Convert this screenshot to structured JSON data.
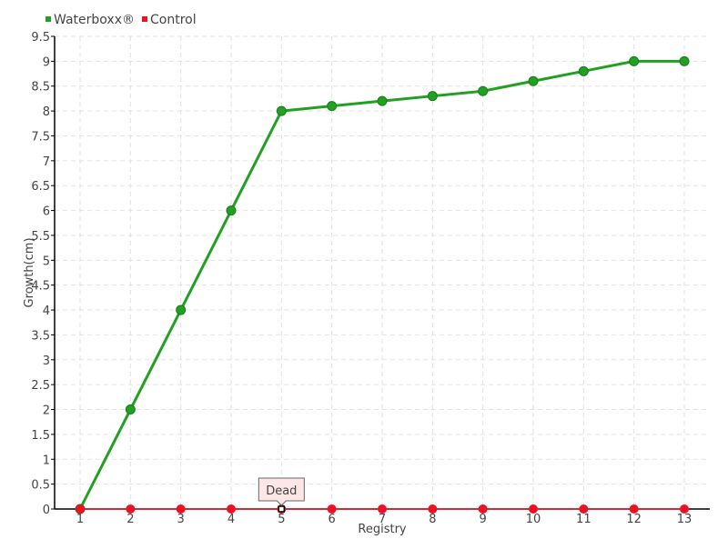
{
  "chart_data": {
    "type": "line",
    "title": "",
    "xlabel": "Registry",
    "ylabel": "Growth(cm)",
    "categories": [
      "1",
      "2",
      "3",
      "4",
      "5",
      "6",
      "7",
      "8",
      "9",
      "10",
      "11",
      "12",
      "13"
    ],
    "ylim": [
      0,
      9.5
    ],
    "yticks": [
      0,
      0.5,
      1,
      1.5,
      2,
      2.5,
      3,
      3.5,
      4,
      4.5,
      5,
      5.5,
      6,
      6.5,
      7,
      7.5,
      8,
      8.5,
      9,
      9.5
    ],
    "grid": true,
    "legend_position": "top-left",
    "series": [
      {
        "name": "Waterboxx®",
        "color": "#22a022",
        "values": [
          0,
          2,
          4,
          6,
          8,
          8.1,
          8.2,
          8.3,
          8.4,
          8.6,
          8.8,
          9,
          9
        ]
      },
      {
        "name": "Control",
        "color": "#ee1122",
        "values": [
          0,
          0,
          0,
          0,
          0,
          0,
          0,
          0,
          0,
          0,
          0,
          0,
          0
        ]
      }
    ],
    "annotations": [
      {
        "x": "5",
        "y": 0,
        "text": "Dead",
        "series": "Control"
      }
    ]
  }
}
